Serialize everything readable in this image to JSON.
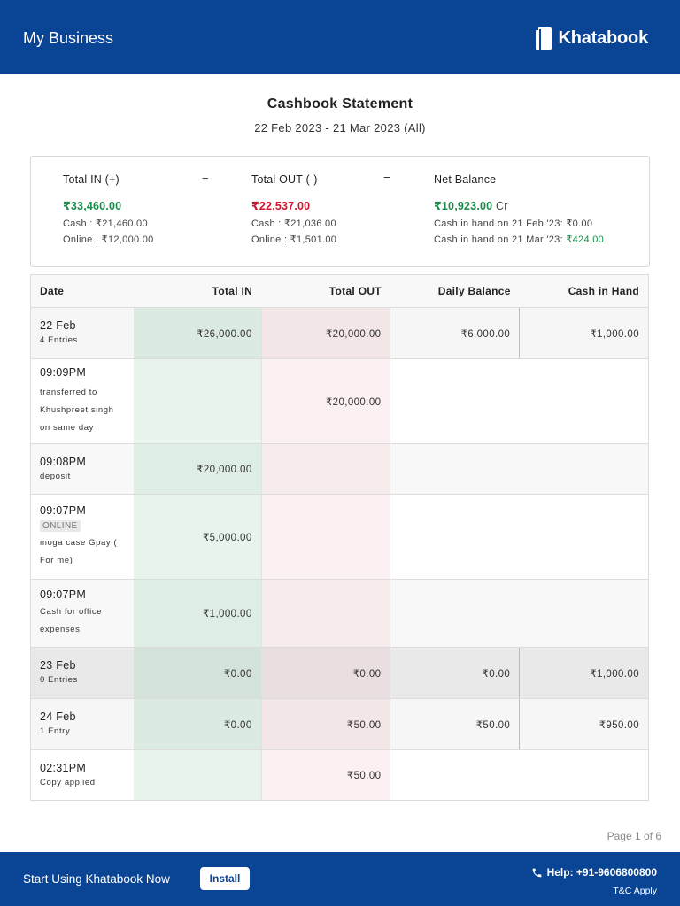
{
  "header": {
    "business_name": "My Business",
    "brand_name": "Khatabook"
  },
  "statement": {
    "title": "Cashbook Statement",
    "range": "22 Feb 2023 - 21 Mar 2023 (All)"
  },
  "summary": {
    "total_in": {
      "label": "Total IN (+)",
      "amount": "₹33,460.00",
      "cash": "Cash : ₹21,460.00",
      "online": "Online : ₹12,000.00"
    },
    "minus_op": "−",
    "total_out": {
      "label": "Total OUT (-)",
      "amount": "₹22,537.00",
      "cash": "Cash : ₹21,036.00",
      "online": "Online : ₹1,501.00"
    },
    "equals_op": "=",
    "net_balance": {
      "label": "Net Balance",
      "amount": "₹10,923.00",
      "suffix": "Cr",
      "start_label": "Cash in hand on 21 Feb '23:",
      "start_value": "₹0.00",
      "end_label": "Cash in hand on 21 Mar '23:",
      "end_value": "₹424.00"
    }
  },
  "table": {
    "headers": {
      "date": "Date",
      "total_in": "Total IN",
      "total_out": "Total OUT",
      "daily_balance": "Daily Balance",
      "cash_in_hand": "Cash in Hand"
    },
    "rows": [
      {
        "date": "22 Feb",
        "sub": "4 Entries",
        "in": "₹26,000.00",
        "out": "₹20,000.00",
        "balance": "₹6,000.00",
        "cash": "₹1,000.00"
      },
      {
        "time": "09:09PM",
        "desc": [
          "transferred to",
          "Khushpreet singh",
          "on same day"
        ],
        "in": "",
        "out": "₹20,000.00"
      },
      {
        "time": "09:08PM",
        "desc": [
          "deposit"
        ],
        "in": "₹20,000.00",
        "out": ""
      },
      {
        "time": "09:07PM",
        "tag": "ONLINE",
        "desc": [
          "moga case Gpay (",
          "For me)"
        ],
        "in": "₹5,000.00",
        "out": ""
      },
      {
        "time": "09:07PM",
        "desc": [
          "Cash for office",
          "expenses"
        ],
        "in": "₹1,000.00",
        "out": ""
      },
      {
        "date": "23 Feb",
        "sub": "0 Entries",
        "in": "₹0.00",
        "out": "₹0.00",
        "balance": "₹0.00",
        "cash": "₹1,000.00"
      },
      {
        "date": "24 Feb",
        "sub": "1 Entry",
        "in": "₹0.00",
        "out": "₹50.00",
        "balance": "₹50.00",
        "cash": "₹950.00"
      },
      {
        "time": "02:31PM",
        "desc": [
          "Copy applied"
        ],
        "in": "",
        "out": "₹50.00"
      }
    ]
  },
  "page_indicator": "Page 1 of 6",
  "footer": {
    "cta_text": "Start Using Khatabook Now",
    "install_label": "Install",
    "help": "Help: +91-9606800800",
    "tc": "T&C Apply"
  },
  "colors": {
    "brand_blue": "#0a4595",
    "positive_green": "#1a8a4a",
    "negative_red": "#d0142c"
  }
}
